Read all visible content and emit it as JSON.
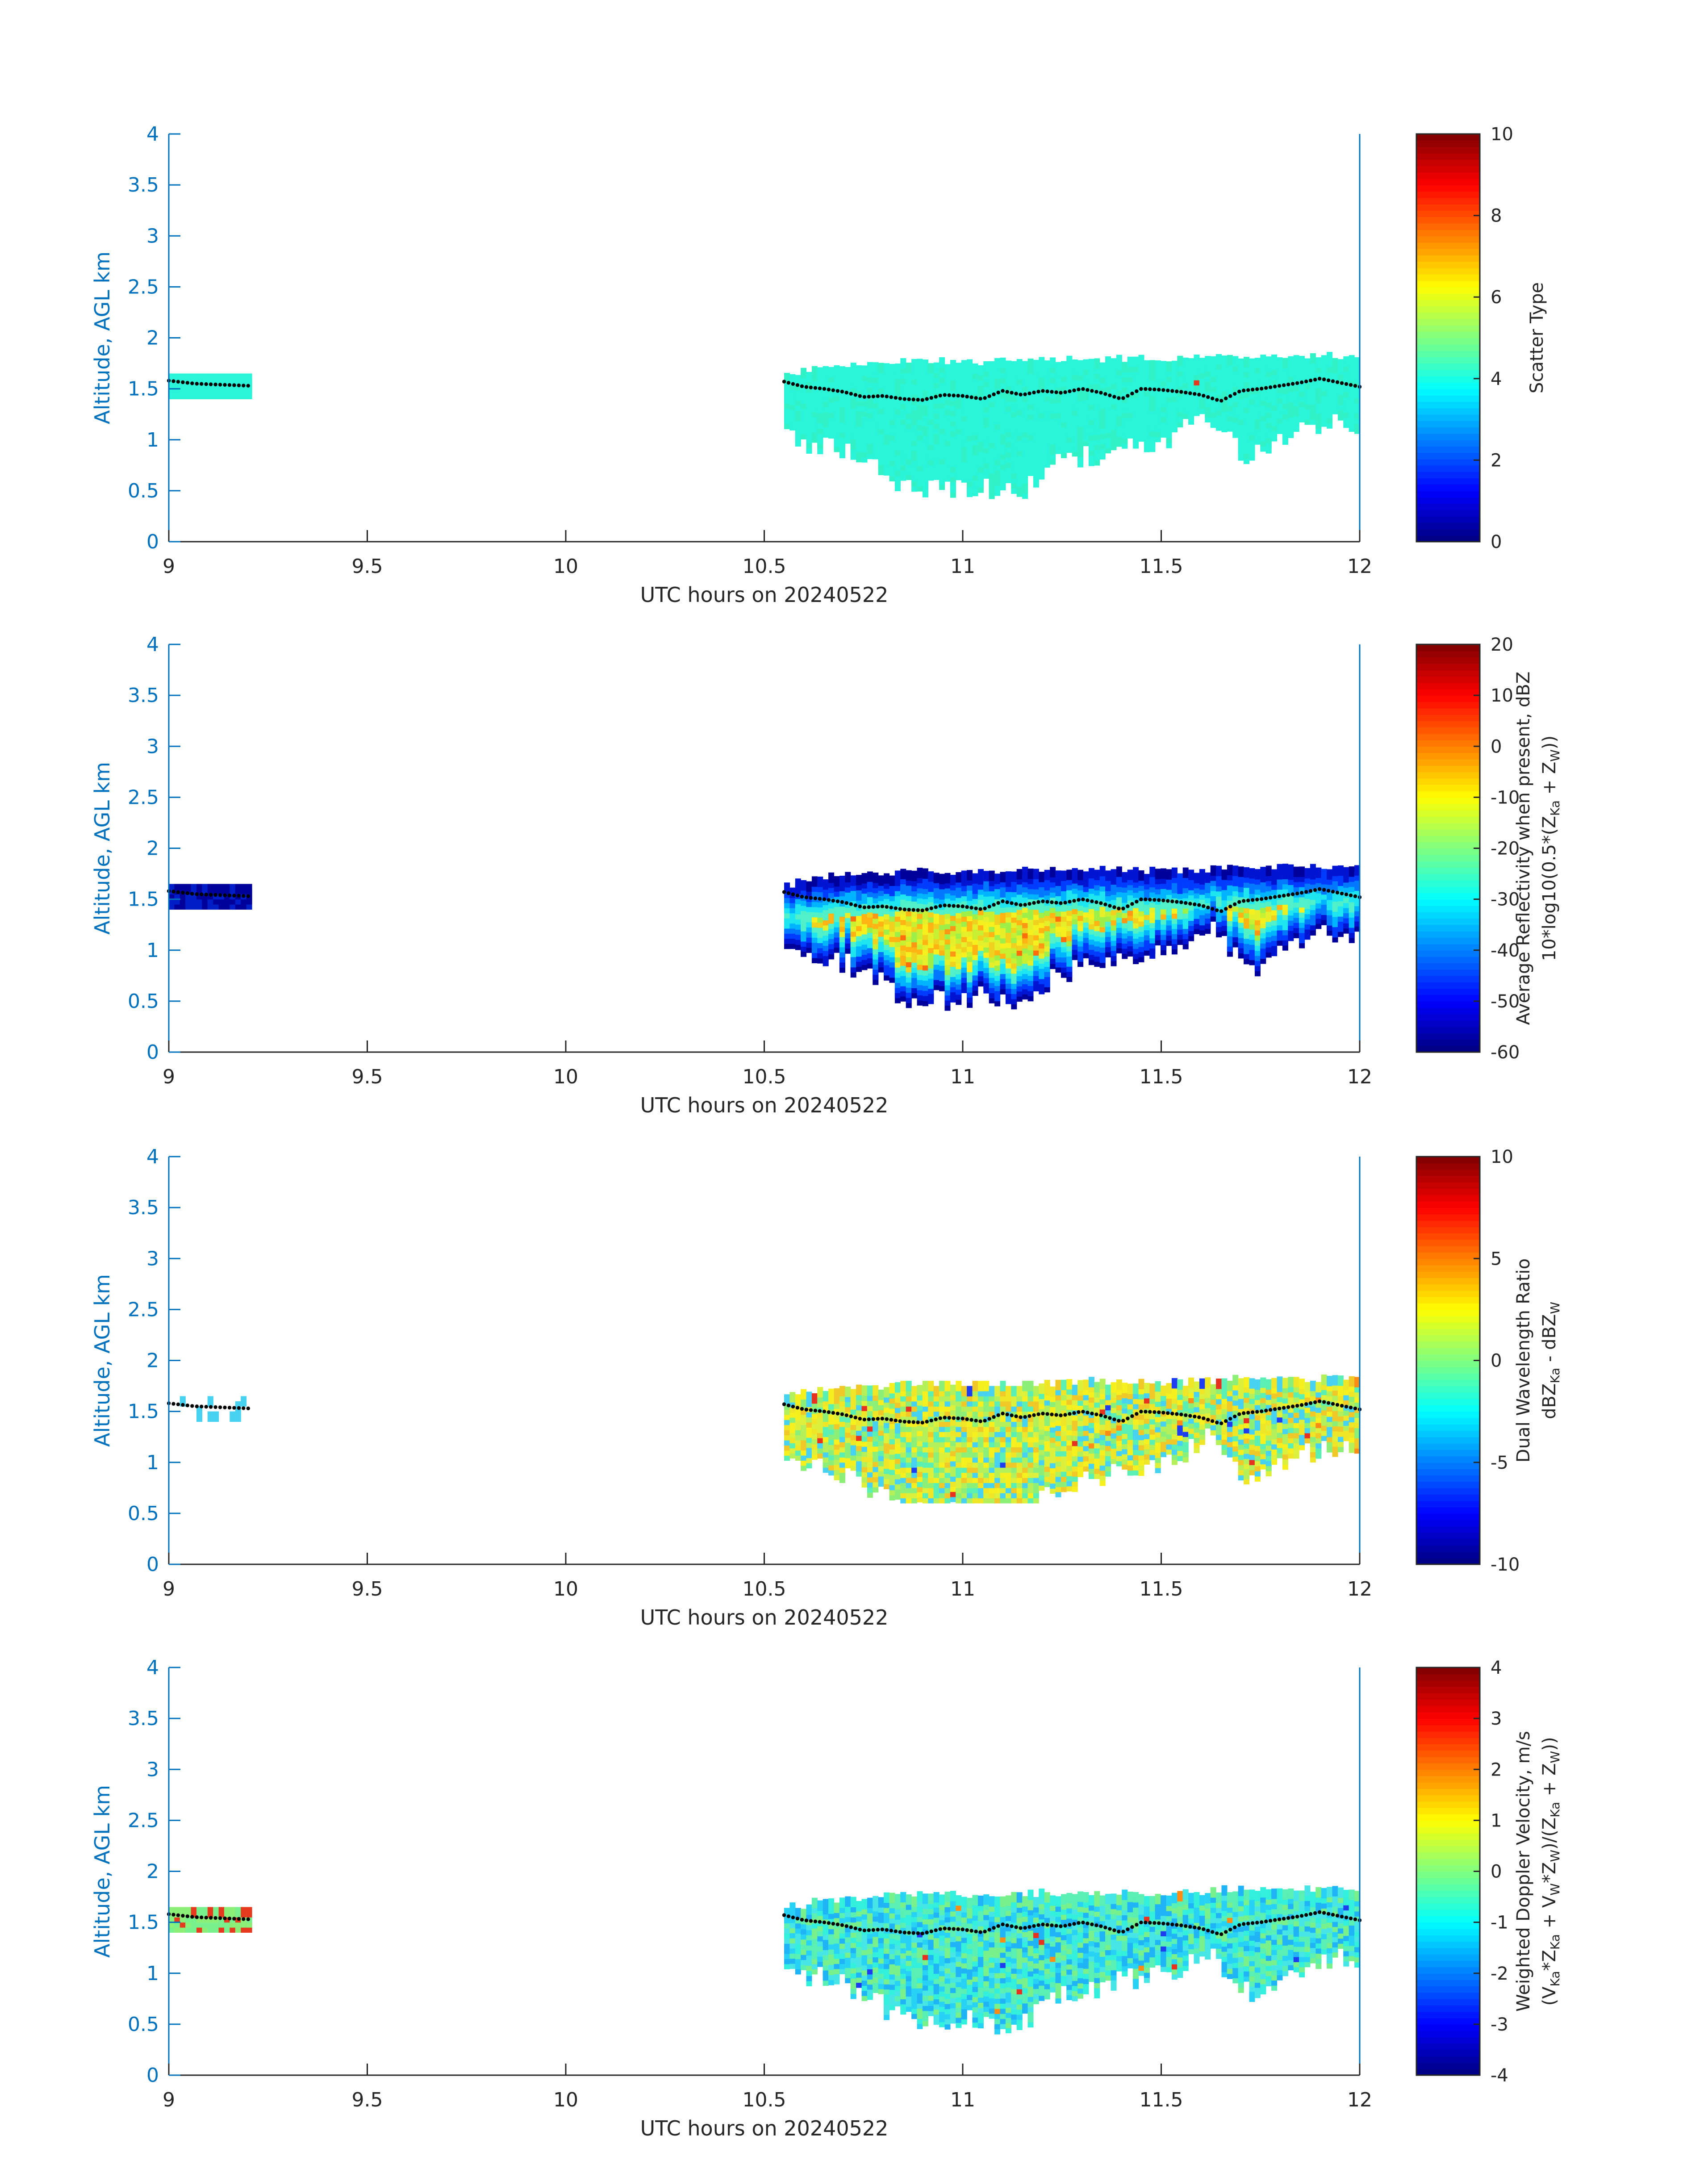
{
  "chart_data": [
    {
      "type": "heatmap",
      "xlabel": "UTC hours on 20240522",
      "ylabel": "Altitude, AGL km",
      "xlim": [
        9,
        12
      ],
      "ylim": [
        0,
        4
      ],
      "xticks": [
        "9",
        "9.5",
        "10",
        "10.5",
        "11",
        "11.5",
        "12"
      ],
      "yticks": [
        "0",
        "0.5",
        "1",
        "1.5",
        "2",
        "2.5",
        "3",
        "3.5",
        "4"
      ],
      "colorbar": {
        "label_lines": [
          "Scatter Type"
        ],
        "clim": [
          0,
          10
        ],
        "ticks": [
          "0",
          "2",
          "4",
          "6",
          "8",
          "10"
        ]
      },
      "fill_colors": [
        "#2af5d8",
        "#2af5d8",
        "#31f2c6",
        "#2af5d8"
      ],
      "speckle_colors": [
        "#e63a1f"
      ],
      "speckle_rate": 0.002
    },
    {
      "type": "heatmap",
      "xlabel": "UTC hours on 20240522",
      "ylabel": "Altitude, AGL km",
      "xlim": [
        9,
        12
      ],
      "ylim": [
        0,
        4
      ],
      "xticks": [
        "9",
        "9.5",
        "10",
        "10.5",
        "11",
        "11.5",
        "12"
      ],
      "yticks": [
        "0",
        "0.5",
        "1",
        "1.5",
        "2",
        "2.5",
        "3",
        "3.5",
        "4"
      ],
      "colorbar": {
        "label_lines": [
          "Average Reflectivity when present, dBZ",
          "10*log10(0.5*(Zₖₐ + Zᴡ))"
        ],
        "label_parts": [
          [
            {
              "t": "Average Reflectivity when present, dBZ"
            }
          ],
          [
            {
              "t": "10*log10(0.5*(Z"
            },
            {
              "t": "Ka",
              "sub": true
            },
            {
              "t": " + Z"
            },
            {
              "t": "W",
              "sub": true
            },
            {
              "t": "))"
            }
          ]
        ],
        "clim": [
          -60,
          20
        ],
        "ticks": [
          "-60",
          "-50",
          "-40",
          "-30",
          "-20",
          "-10",
          "0",
          "10",
          "20"
        ]
      },
      "fill_colors": [
        "#f5f01e",
        "#e6f02a",
        "#c8f032",
        "#f0d21e",
        "#9ef048",
        "#ffb414"
      ],
      "edge_colors": [
        "#00009b",
        "#0014d2",
        "#003cff",
        "#0078ff",
        "#00b4ff",
        "#1ee6f0",
        "#50f0c8"
      ],
      "speckle_colors": [
        "#ff6e0a",
        "#ff9614"
      ],
      "speckle_rate": 0.03
    },
    {
      "type": "heatmap",
      "xlabel": "UTC hours on 20240522",
      "ylabel": "Altitude, AGL km",
      "xlim": [
        9,
        12
      ],
      "ylim": [
        0,
        4
      ],
      "xticks": [
        "9",
        "9.5",
        "10",
        "10.5",
        "11",
        "11.5",
        "12"
      ],
      "yticks": [
        "0",
        "0.5",
        "1",
        "1.5",
        "2",
        "2.5",
        "3",
        "3.5",
        "4"
      ],
      "colorbar": {
        "label_lines": [
          "Dual Wavelength Ratio",
          "dBZ Ka - dBZ W"
        ],
        "label_parts": [
          [
            {
              "t": "Dual Wavelength Ratio"
            }
          ],
          [
            {
              "t": "dBZ"
            },
            {
              "t": "Ka",
              "sub": true
            },
            {
              "t": " - dBZ"
            },
            {
              "t": "W",
              "sub": true
            }
          ]
        ],
        "clim": [
          -10,
          10
        ],
        "ticks": [
          "-10",
          "-5",
          "0",
          "5",
          "10"
        ]
      },
      "fill_colors": [
        "#f5f01e",
        "#dcf03c",
        "#b4f05a",
        "#f0e628",
        "#8cf078",
        "#5af0b4",
        "#46d2f0",
        "#f0c828"
      ],
      "speckle_colors": [
        "#e6321e",
        "#1e3cf0",
        "#ff8c14"
      ],
      "speckle_rate": 0.02
    },
    {
      "type": "heatmap",
      "xlabel": "UTC hours on 20240522",
      "ylabel": "Altitude, AGL km",
      "xlim": [
        9,
        12
      ],
      "ylim": [
        0,
        4
      ],
      "xticks": [
        "9",
        "9.5",
        "10",
        "10.5",
        "11",
        "11.5",
        "12"
      ],
      "yticks": [
        "0",
        "0.5",
        "1",
        "1.5",
        "2",
        "2.5",
        "3",
        "3.5",
        "4"
      ],
      "colorbar": {
        "label_lines": [
          "Weighted Doppler Velocity, m/s",
          "(Vₖₐ*Zₖₐ + Vᴡ*Zᴡ)/(Zₖₐ + Zᴡ))"
        ],
        "label_parts": [
          [
            {
              "t": "Weighted Doppler Velocity, m/s"
            }
          ],
          [
            {
              "t": "(V"
            },
            {
              "t": "Ka",
              "sub": true
            },
            {
              "t": "*Z"
            },
            {
              "t": "Ka",
              "sub": true
            },
            {
              "t": " + V"
            },
            {
              "t": "W",
              "sub": true
            },
            {
              "t": "*Z"
            },
            {
              "t": "W",
              "sub": true
            },
            {
              "t": ")/(Z"
            },
            {
              "t": "Ka",
              "sub": true
            },
            {
              "t": " + Z"
            },
            {
              "t": "W",
              "sub": true
            },
            {
              "t": "))"
            }
          ]
        ],
        "clim": [
          -4,
          4
        ],
        "ticks": [
          "-4",
          "-3",
          "-2",
          "-1",
          "0",
          "1",
          "2",
          "3",
          "4"
        ]
      },
      "fill_colors": [
        "#32f0dc",
        "#5af0b4",
        "#28d2f5",
        "#78f08c",
        "#46e6e6",
        "#1eb4f5"
      ],
      "speckle_colors": [
        "#e6321e",
        "#1e3cf0",
        "#ff8c14"
      ],
      "speckle_rate": 0.015
    }
  ],
  "cloud_profile": {
    "left_patch": {
      "x_start": 9.0,
      "x_end": 9.2,
      "bottom_km": 1.45,
      "top_km": 1.65
    },
    "main": {
      "x_start": 10.55,
      "x_end": 12.0,
      "top_km": [
        1.62,
        1.7,
        1.72,
        1.74,
        1.75,
        1.75,
        1.76,
        1.76,
        1.77,
        1.76,
        1.77,
        1.78,
        1.8,
        1.8,
        1.8,
        1.8
      ],
      "bottom_km": [
        1.05,
        1.0,
        0.85,
        0.6,
        0.55,
        0.6,
        0.5,
        0.8,
        0.9,
        1.0,
        1.05,
        1.3,
        0.85,
        1.05,
        1.2,
        1.2
      ]
    },
    "boundary_line_km": [
      1.57,
      1.52,
      1.5,
      1.47,
      1.42,
      1.43,
      1.4,
      1.39,
      1.44,
      1.43,
      1.4,
      1.48,
      1.44,
      1.48,
      1.46,
      1.5,
      1.46,
      1.4,
      1.5,
      1.49,
      1.47,
      1.44,
      1.38,
      1.48,
      1.5,
      1.53,
      1.56,
      1.6,
      1.56,
      1.52
    ],
    "boundary_line_left_km": [
      1.58,
      1.55,
      1.54,
      1.53
    ]
  }
}
